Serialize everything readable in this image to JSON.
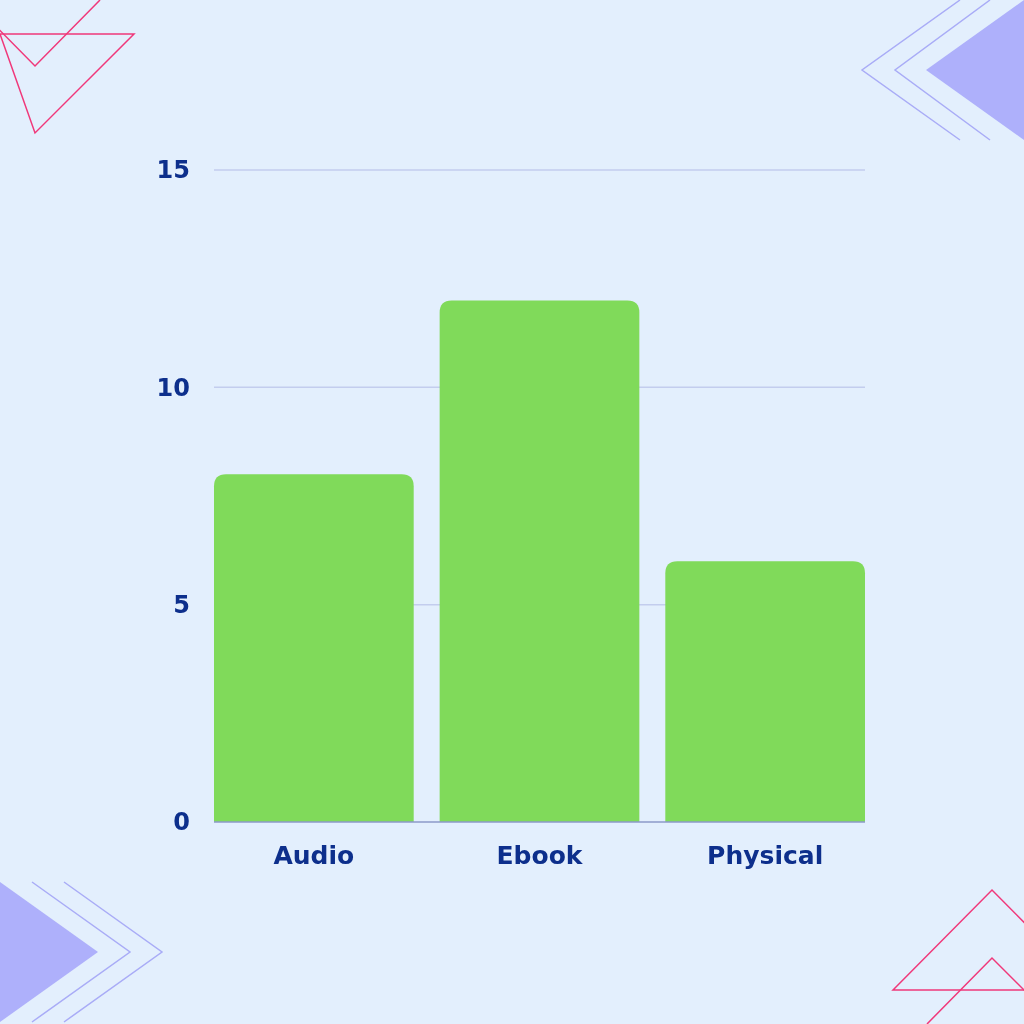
{
  "chart_data": {
    "type": "bar",
    "categories": [
      "Audio",
      "Ebook",
      "Physical"
    ],
    "values": [
      8,
      12,
      6
    ],
    "color": "#80da5a",
    "ylim": [
      0,
      15
    ],
    "yticks": [
      0,
      5,
      10,
      15
    ],
    "grid": "y"
  }
}
